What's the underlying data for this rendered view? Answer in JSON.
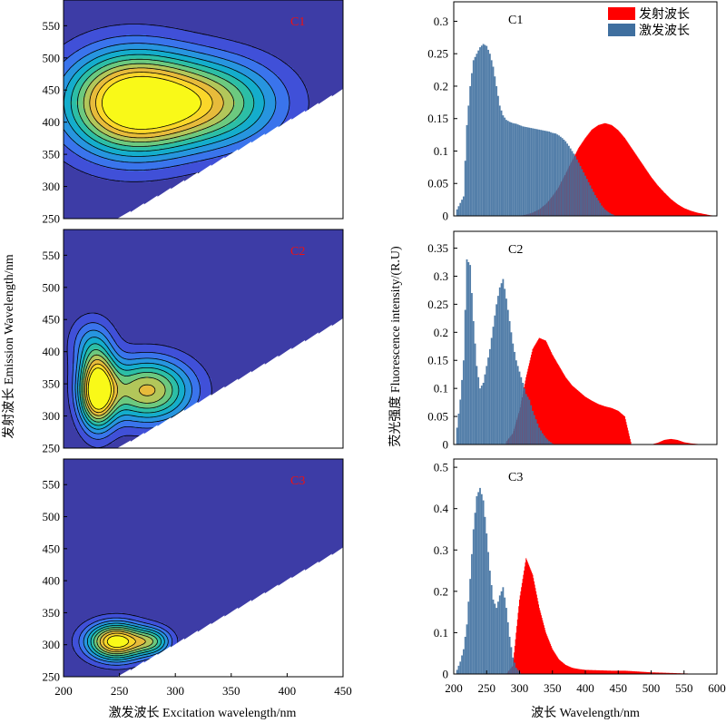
{
  "colors": {
    "contour_bg": "#3d3ca6",
    "emission": "#ff0000",
    "excitation": "#3f6f9f",
    "component_label": "#ee1111"
  },
  "chart_data": [
    {
      "type": "contour",
      "component": "C1",
      "xlim": [
        200,
        450
      ],
      "ylim": [
        250,
        590
      ],
      "xticks": [
        200,
        250,
        300,
        350,
        400,
        450
      ],
      "yticks": [
        250,
        300,
        350,
        400,
        450,
        500,
        550
      ],
      "levels": 10,
      "peaks": [
        {
          "ex": 258,
          "em": 430,
          "sx": 40,
          "sy": 55,
          "amp": 1.0
        },
        {
          "ex": 330,
          "em": 430,
          "sx": 45,
          "sy": 48,
          "amp": 0.65
        }
      ]
    },
    {
      "type": "contour",
      "component": "C2",
      "xlim": [
        200,
        450
      ],
      "ylim": [
        250,
        590
      ],
      "xticks": [
        200,
        250,
        300,
        350,
        400,
        450
      ],
      "yticks": [
        250,
        300,
        350,
        400,
        450,
        500,
        550
      ],
      "levels": 10,
      "peaks": [
        {
          "ex": 230,
          "em": 340,
          "sx": 11,
          "sy": 40,
          "amp": 1.0
        },
        {
          "ex": 275,
          "em": 340,
          "sx": 28,
          "sy": 35,
          "amp": 0.75
        },
        {
          "ex": 225,
          "em": 415,
          "sx": 14,
          "sy": 30,
          "amp": 0.25
        }
      ]
    },
    {
      "type": "contour",
      "component": "C3",
      "xlim": [
        200,
        450
      ],
      "ylim": [
        250,
        590
      ],
      "xticks": [
        200,
        250,
        300,
        350,
        400,
        450
      ],
      "yticks": [
        250,
        300,
        350,
        400,
        450,
        500,
        550
      ],
      "levels": 10,
      "peaks": [
        {
          "ex": 247,
          "em": 305,
          "sx": 18,
          "sy": 20,
          "amp": 1.0
        },
        {
          "ex": 280,
          "em": 305,
          "sx": 12,
          "sy": 15,
          "amp": 0.45
        }
      ]
    },
    {
      "type": "bar",
      "component": "C1",
      "xlim": [
        200,
        600
      ],
      "ylim": [
        0,
        0.33
      ],
      "xticks": [
        200,
        250,
        300,
        350,
        400,
        450,
        500,
        550,
        600
      ],
      "yticks": [
        0,
        0.05,
        0.1,
        0.15,
        0.2,
        0.25,
        0.3
      ],
      "legend": {
        "emission": "发射波长",
        "excitation": "激发波长",
        "position": "top-right"
      },
      "series": [
        {
          "name": "激发波长",
          "x": [
            205,
            210,
            215,
            220,
            225,
            230,
            235,
            240,
            245,
            250,
            255,
            260,
            265,
            270,
            275,
            280,
            285,
            290,
            295,
            300,
            305,
            310,
            315,
            320,
            325,
            330,
            335,
            340,
            345,
            350,
            355,
            360,
            365,
            370,
            375,
            380,
            385,
            390,
            395,
            400,
            405,
            410,
            415,
            420,
            425,
            430,
            435,
            440,
            445,
            450
          ],
          "values": [
            0.01,
            0.02,
            0.03,
            0.14,
            0.2,
            0.24,
            0.25,
            0.26,
            0.265,
            0.262,
            0.25,
            0.23,
            0.2,
            0.17,
            0.155,
            0.148,
            0.145,
            0.143,
            0.142,
            0.14,
            0.138,
            0.137,
            0.136,
            0.135,
            0.134,
            0.133,
            0.132,
            0.131,
            0.13,
            0.128,
            0.127,
            0.124,
            0.12,
            0.115,
            0.108,
            0.1,
            0.092,
            0.082,
            0.072,
            0.062,
            0.052,
            0.042,
            0.032,
            0.024,
            0.016,
            0.01,
            0.006,
            0.003,
            0.001,
            0.0
          ]
        },
        {
          "name": "发射波长",
          "x": [
            300,
            310,
            320,
            330,
            340,
            350,
            360,
            370,
            380,
            390,
            400,
            410,
            420,
            430,
            440,
            450,
            460,
            470,
            480,
            490,
            500,
            510,
            520,
            530,
            540,
            550,
            560,
            570,
            580,
            590,
            600
          ],
          "values": [
            0.0,
            0.002,
            0.005,
            0.01,
            0.018,
            0.03,
            0.045,
            0.065,
            0.085,
            0.105,
            0.12,
            0.133,
            0.14,
            0.143,
            0.14,
            0.132,
            0.12,
            0.105,
            0.09,
            0.075,
            0.06,
            0.047,
            0.036,
            0.026,
            0.018,
            0.012,
            0.008,
            0.005,
            0.003,
            0.001,
            0.0
          ]
        }
      ]
    },
    {
      "type": "bar",
      "component": "C2",
      "xlim": [
        200,
        600
      ],
      "ylim": [
        0,
        0.38
      ],
      "xticks": [
        200,
        250,
        300,
        350,
        400,
        450,
        500,
        550,
        600
      ],
      "yticks": [
        0,
        0.05,
        0.1,
        0.15,
        0.2,
        0.25,
        0.3,
        0.35
      ],
      "series": [
        {
          "name": "激发波长",
          "x": [
            205,
            210,
            215,
            220,
            225,
            230,
            235,
            240,
            245,
            250,
            255,
            260,
            265,
            270,
            275,
            280,
            285,
            290,
            295,
            300,
            305,
            310,
            315,
            320,
            325,
            330,
            335,
            340,
            345,
            350
          ],
          "values": [
            0.03,
            0.08,
            0.15,
            0.33,
            0.32,
            0.22,
            0.14,
            0.1,
            0.11,
            0.14,
            0.17,
            0.21,
            0.25,
            0.28,
            0.295,
            0.26,
            0.22,
            0.18,
            0.15,
            0.13,
            0.11,
            0.09,
            0.08,
            0.06,
            0.045,
            0.03,
            0.02,
            0.012,
            0.006,
            0.002
          ]
        },
        {
          "name": "发射波长",
          "x": [
            280,
            290,
            300,
            310,
            320,
            330,
            340,
            350,
            360,
            370,
            380,
            390,
            400,
            410,
            420,
            430,
            440,
            450,
            460,
            470,
            480,
            490,
            500,
            510,
            520,
            530,
            540,
            550,
            560,
            570,
            580,
            590,
            600
          ],
          "values": [
            0.005,
            0.02,
            0.06,
            0.12,
            0.17,
            0.19,
            0.185,
            0.16,
            0.14,
            0.12,
            0.105,
            0.095,
            0.085,
            0.078,
            0.072,
            0.068,
            0.065,
            0.06,
            0.05,
            0.0,
            0.0,
            0.0,
            0.0,
            0.003,
            0.008,
            0.01,
            0.008,
            0.004,
            0.002,
            0.001,
            0.0,
            0.0,
            0.0
          ]
        }
      ]
    },
    {
      "type": "bar",
      "component": "C3",
      "xlim": [
        200,
        600
      ],
      "ylim": [
        0,
        0.52
      ],
      "xticks": [
        200,
        250,
        300,
        350,
        400,
        450,
        500,
        550,
        600
      ],
      "yticks": [
        0,
        0.1,
        0.2,
        0.3,
        0.4,
        0.5
      ],
      "series": [
        {
          "name": "激发波长",
          "x": [
            205,
            210,
            215,
            220,
            225,
            230,
            235,
            240,
            245,
            250,
            255,
            260,
            265,
            270,
            275,
            280,
            285,
            290,
            295,
            300
          ],
          "values": [
            0.01,
            0.03,
            0.06,
            0.12,
            0.23,
            0.35,
            0.43,
            0.45,
            0.42,
            0.34,
            0.25,
            0.18,
            0.16,
            0.19,
            0.21,
            0.16,
            0.09,
            0.04,
            0.015,
            0.005
          ]
        },
        {
          "name": "发射波长",
          "x": [
            280,
            290,
            300,
            310,
            320,
            330,
            340,
            350,
            360,
            370,
            380,
            390,
            400,
            420,
            440,
            460,
            480,
            500,
            520,
            540,
            560,
            580,
            600
          ],
          "values": [
            0.0,
            0.02,
            0.18,
            0.28,
            0.24,
            0.16,
            0.1,
            0.06,
            0.035,
            0.022,
            0.015,
            0.012,
            0.01,
            0.009,
            0.008,
            0.008,
            0.006,
            0.004,
            0.003,
            0.002,
            0.001,
            0.001,
            0.0
          ]
        }
      ]
    }
  ],
  "labels": {
    "ylabel_left": "发射波长 Emission Wavelength/nm",
    "xlabel_left": "激发波长 Excitation wavelength/nm",
    "ylabel_right": "荧光强度 Fluorescence intensity/(R.U)",
    "xlabel_right": "波长 Wavelength/nm"
  }
}
